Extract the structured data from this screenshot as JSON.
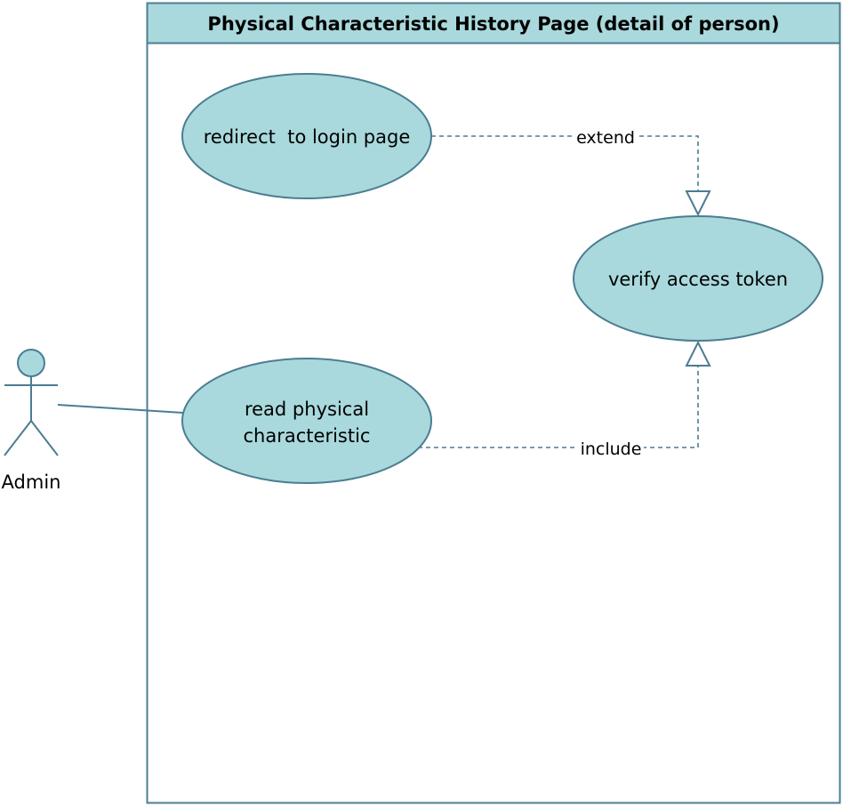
{
  "colors": {
    "fill": "#a9d9dc",
    "stroke": "#4b7d92",
    "background": "#ffffff",
    "text": "#000000"
  },
  "system": {
    "title": "Physical Characteristic History Page (detail of person)"
  },
  "actor": {
    "label": "Admin"
  },
  "use_cases": {
    "redirect": "redirect  to login page",
    "verify": "verify access token",
    "read_line1": "read physical",
    "read_line2": "characteristic"
  },
  "relations": {
    "extend_label": "extend",
    "include_label": "include"
  }
}
